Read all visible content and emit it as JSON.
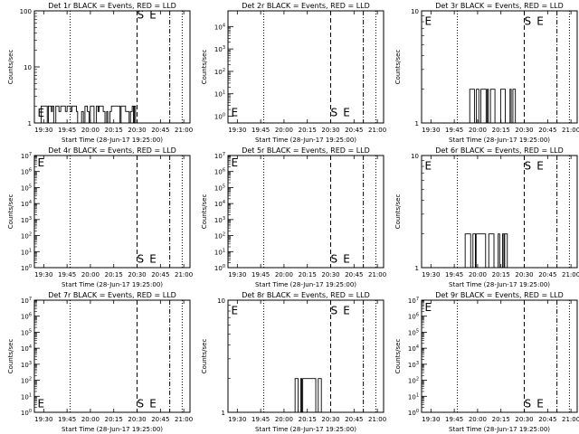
{
  "common": {
    "xlabel": "Start Time (28-Jun-17 19:25:00)",
    "ylabel": "Counts/sec",
    "xticks": [
      "19:30",
      "19:45",
      "20:00",
      "20:15",
      "20:30",
      "20:45",
      "21:00"
    ],
    "x_range_min": [
      0,
      100
    ],
    "markers": {
      "E_label": "E",
      "S_label": "S"
    }
  },
  "chart_data": [
    {
      "type": "line",
      "title": "Det 1r BLACK = Events, RED = LLD",
      "yscale": "log",
      "ylim": [
        1,
        100
      ],
      "yticks": [
        {
          "v": 1,
          "label": "1"
        },
        {
          "v": 10,
          "label": "10"
        },
        {
          "v": 100,
          "label": "100"
        }
      ],
      "vlines": {
        "dotted": [
          23,
          95
        ],
        "dashed": [
          66
        ],
        "dashdot": [
          87
        ]
      },
      "letters": [
        {
          "label": "E",
          "x": 2,
          "y": 1.55
        },
        {
          "label": "S",
          "x": 66,
          "y": 88
        },
        {
          "label": "E",
          "x": 74,
          "y": 88
        }
      ],
      "series": [
        {
          "color": "#000000",
          "range": [
            3,
            65
          ],
          "low": 1,
          "high": [
            2,
            1.6
          ],
          "pattern": "dense"
        }
      ]
    },
    {
      "type": "line",
      "title": "Det 2r BLACK = Events, RED = LLD",
      "yscale": "log",
      "ylim": [
        0.5,
        50000
      ],
      "yticks": [
        {
          "v": 1,
          "label": "10^0"
        },
        {
          "v": 10,
          "label": "10^1"
        },
        {
          "v": 100,
          "label": "10^2"
        },
        {
          "v": 1000,
          "label": "10^3"
        },
        {
          "v": 10000,
          "label": "10^4"
        }
      ],
      "vlines": {
        "dotted": [
          23,
          95
        ],
        "dashed": [
          66
        ],
        "dashdot": [
          87
        ]
      },
      "letters": [
        {
          "label": "E",
          "x": 2,
          "y": 1.6
        },
        {
          "label": "S",
          "x": 66,
          "y": 1.6
        },
        {
          "label": "E",
          "x": 74,
          "y": 1.6
        }
      ],
      "series": []
    },
    {
      "type": "line",
      "title": "Det 3r BLACK = Events, RED = LLD",
      "yscale": "log",
      "ylim": [
        1,
        10
      ],
      "yticks": [
        {
          "v": 1,
          "label": "1"
        },
        {
          "v": 10,
          "label": "10"
        }
      ],
      "vlines": {
        "dotted": [
          23,
          95
        ],
        "dashed": [
          66
        ],
        "dashdot": [
          87
        ]
      },
      "letters": [
        {
          "label": "E",
          "x": 2,
          "y": 8.2
        },
        {
          "label": "S",
          "x": 66,
          "y": 8.2
        },
        {
          "label": "E",
          "x": 74,
          "y": 8.2
        }
      ],
      "series": [
        {
          "color": "#000000",
          "range": [
            25,
            62
          ],
          "low": 1,
          "high": [
            2
          ],
          "pattern": "sparse"
        }
      ]
    },
    {
      "type": "line",
      "title": "Det 4r BLACK = Events, RED = LLD",
      "yscale": "log",
      "ylim": [
        1,
        10000000
      ],
      "yticks": [
        {
          "v": 1,
          "label": "10^0"
        },
        {
          "v": 10,
          "label": "10^1"
        },
        {
          "v": 100,
          "label": "10^2"
        },
        {
          "v": 1000,
          "label": "10^3"
        },
        {
          "v": 10000,
          "label": "10^4"
        },
        {
          "v": 100000,
          "label": "10^5"
        },
        {
          "v": 1000000,
          "label": "10^6"
        },
        {
          "v": 10000000,
          "label": "10^7"
        }
      ],
      "vlines": {
        "dotted": [
          23,
          95
        ],
        "dashed": [
          66
        ],
        "dashdot": [
          87
        ]
      },
      "letters": [
        {
          "label": "E",
          "x": 2,
          "y": 4000000
        },
        {
          "label": "S",
          "x": 66,
          "y": 4
        },
        {
          "label": "E",
          "x": 74,
          "y": 4
        }
      ],
      "series": []
    },
    {
      "type": "line",
      "title": "Det 5r BLACK = Events, RED = LLD",
      "yscale": "log",
      "ylim": [
        1,
        10000000
      ],
      "yticks": [
        {
          "v": 1,
          "label": "10^0"
        },
        {
          "v": 10,
          "label": "10^1"
        },
        {
          "v": 100,
          "label": "10^2"
        },
        {
          "v": 1000,
          "label": "10^3"
        },
        {
          "v": 10000,
          "label": "10^4"
        },
        {
          "v": 100000,
          "label": "10^5"
        },
        {
          "v": 1000000,
          "label": "10^6"
        },
        {
          "v": 10000000,
          "label": "10^7"
        }
      ],
      "vlines": {
        "dotted": [
          23,
          95
        ],
        "dashed": [
          66
        ],
        "dashdot": [
          87
        ]
      },
      "letters": [
        {
          "label": "E",
          "x": 2,
          "y": 4000000
        },
        {
          "label": "S",
          "x": 66,
          "y": 4
        },
        {
          "label": "E",
          "x": 74,
          "y": 4
        }
      ],
      "series": []
    },
    {
      "type": "line",
      "title": "Det 6r BLACK = Events, RED = LLD",
      "yscale": "log",
      "ylim": [
        1,
        10
      ],
      "yticks": [
        {
          "v": 1,
          "label": "1"
        },
        {
          "v": 10,
          "label": "10"
        }
      ],
      "vlines": {
        "dotted": [
          23,
          95
        ],
        "dashed": [
          66
        ],
        "dashdot": [
          87
        ]
      },
      "letters": [
        {
          "label": "E",
          "x": 2,
          "y": 8.2
        },
        {
          "label": "S",
          "x": 66,
          "y": 8.2
        },
        {
          "label": "E",
          "x": 74,
          "y": 8.2
        }
      ],
      "series": [
        {
          "color": "#000000",
          "range": [
            28,
            62
          ],
          "low": 1,
          "high": [
            2
          ],
          "pattern": "sparse"
        }
      ]
    },
    {
      "type": "line",
      "title": "Det 7r BLACK = Events, RED = LLD",
      "yscale": "log",
      "ylim": [
        1,
        10000000
      ],
      "yticks": [
        {
          "v": 1,
          "label": "10^0"
        },
        {
          "v": 10,
          "label": "10^1"
        },
        {
          "v": 100,
          "label": "10^2"
        },
        {
          "v": 1000,
          "label": "10^3"
        },
        {
          "v": 10000,
          "label": "10^4"
        },
        {
          "v": 100000,
          "label": "10^5"
        },
        {
          "v": 1000000,
          "label": "10^6"
        },
        {
          "v": 10000000,
          "label": "10^7"
        }
      ],
      "vlines": {
        "dotted": [
          23,
          95
        ],
        "dashed": [
          66
        ],
        "dashdot": [
          87
        ]
      },
      "letters": [
        {
          "label": "E",
          "x": 2,
          "y": 4
        },
        {
          "label": "S",
          "x": 66,
          "y": 4
        },
        {
          "label": "E",
          "x": 74,
          "y": 4
        }
      ],
      "series": []
    },
    {
      "type": "line",
      "title": "Det 8r BLACK = Events, RED = LLD",
      "yscale": "log",
      "ylim": [
        1,
        10
      ],
      "yticks": [
        {
          "v": 1,
          "label": "1"
        },
        {
          "v": 10,
          "label": "10"
        }
      ],
      "vlines": {
        "dotted": [
          23,
          95
        ],
        "dashed": [
          66
        ],
        "dashdot": [
          87
        ]
      },
      "letters": [
        {
          "label": "E",
          "x": 2,
          "y": 8.2
        },
        {
          "label": "S",
          "x": 66,
          "y": 8.2
        },
        {
          "label": "E",
          "x": 74,
          "y": 8.2
        }
      ],
      "series": [
        {
          "color": "#000000",
          "range": [
            38,
            60
          ],
          "low": 1,
          "high": [
            2
          ],
          "pattern": "sparse"
        }
      ]
    },
    {
      "type": "line",
      "title": "Det 9r BLACK = Events, RED = LLD",
      "yscale": "log",
      "ylim": [
        1,
        10000000
      ],
      "yticks": [
        {
          "v": 1,
          "label": "10^0"
        },
        {
          "v": 10,
          "label": "10^1"
        },
        {
          "v": 100,
          "label": "10^2"
        },
        {
          "v": 1000,
          "label": "10^3"
        },
        {
          "v": 10000,
          "label": "10^4"
        },
        {
          "v": 100000,
          "label": "10^5"
        },
        {
          "v": 1000000,
          "label": "10^6"
        },
        {
          "v": 10000000,
          "label": "10^7"
        }
      ],
      "vlines": {
        "dotted": [
          23,
          95
        ],
        "dashed": [
          66
        ],
        "dashdot": [
          87
        ]
      },
      "letters": [
        {
          "label": "E",
          "x": 2,
          "y": 4000000
        },
        {
          "label": "S",
          "x": 66,
          "y": 4
        },
        {
          "label": "E",
          "x": 74,
          "y": 4
        }
      ],
      "series": []
    }
  ]
}
